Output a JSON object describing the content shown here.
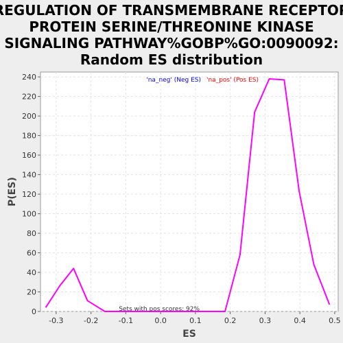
{
  "chart_data": {
    "type": "line",
    "title_lines": [
      "REGULATION OF TRANSMEMBRANE RECEPTOR",
      "PROTEIN SERINE/THREONINE KINASE",
      "SIGNALING PATHWAY%GOBP%GO:0090092:",
      "Random ES distribution"
    ],
    "xlabel": "ES",
    "ylabel": "P(ES)",
    "xlim": [
      -0.345,
      0.51
    ],
    "ylim": [
      0,
      245
    ],
    "xticks": [
      -0.3,
      -0.2,
      -0.1,
      0.0,
      0.1,
      0.2,
      0.3,
      0.4,
      0.5
    ],
    "xtick_labels": [
      "-0.3",
      "-0.2",
      "-0.1",
      "0.0",
      "0.1",
      "0.2",
      "0.3",
      "0.4",
      "0.5"
    ],
    "yticks": [
      0,
      20,
      40,
      60,
      80,
      100,
      120,
      140,
      160,
      180,
      200,
      220,
      240
    ],
    "ytick_labels": [
      "0",
      "20",
      "40",
      "60",
      "80",
      "100",
      "120",
      "140",
      "160",
      "180",
      "200",
      "220",
      "240"
    ],
    "grid": true,
    "legend_position": "top-center",
    "legend": [
      {
        "label": "'na_neg' (Neg ES)",
        "color": "#0000ff"
      },
      {
        "label": "'na_pos' (Pos ES)",
        "color": "#ff0000"
      }
    ],
    "annotation": "Sets with pos scores: 92%",
    "series": [
      {
        "color": "#ff00ff",
        "points": [
          [
            -0.33,
            4
          ],
          [
            -0.29,
            26
          ],
          [
            -0.25,
            44
          ],
          [
            -0.21,
            11
          ],
          [
            -0.16,
            0
          ],
          [
            -0.12,
            0
          ],
          [
            -0.08,
            0
          ],
          [
            -0.04,
            0
          ],
          [
            0.0,
            0
          ],
          [
            0.04,
            0
          ],
          [
            0.08,
            0
          ],
          [
            0.12,
            0
          ],
          [
            0.15,
            0
          ],
          [
            0.185,
            0
          ],
          [
            0.228,
            58
          ],
          [
            0.27,
            204
          ],
          [
            0.312,
            238
          ],
          [
            0.355,
            237
          ],
          [
            0.398,
            123
          ],
          [
            0.44,
            48
          ],
          [
            0.485,
            7
          ]
        ]
      }
    ]
  }
}
